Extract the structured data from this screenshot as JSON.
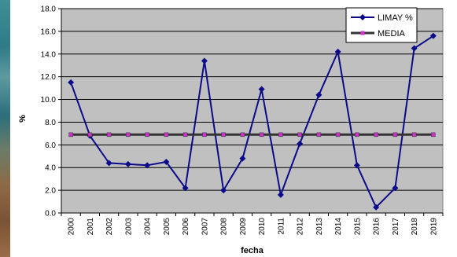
{
  "chart_data": {
    "type": "line",
    "title": "",
    "xlabel": "fecha",
    "ylabel": "%",
    "ylim": [
      0,
      18
    ],
    "ytick_step": 2,
    "ytick_labels": [
      "0.0",
      "2.0",
      "4.0",
      "6.0",
      "8.0",
      "10.0",
      "12.0",
      "14.0",
      "16.0",
      "18.0"
    ],
    "categories": [
      "2000",
      "2001",
      "2002",
      "2003",
      "2004",
      "2005",
      "2006",
      "2007",
      "2008",
      "2009",
      "2010",
      "2011",
      "2012",
      "2013",
      "2014",
      "2015",
      "2016",
      "2017",
      "2018",
      "2019"
    ],
    "series": [
      {
        "name": "LIMAY %",
        "color": "#0a0a8a",
        "marker": "diamond",
        "values": [
          11.5,
          6.8,
          4.4,
          4.3,
          4.2,
          4.5,
          2.2,
          13.4,
          2.0,
          4.8,
          10.9,
          1.6,
          6.1,
          10.4,
          14.2,
          4.2,
          0.5,
          2.2,
          14.5,
          15.6
        ]
      },
      {
        "name": "MEDIA",
        "color": "#333333",
        "marker_color": "#cc33cc",
        "marker": "square",
        "values": [
          6.9,
          6.9,
          6.9,
          6.9,
          6.9,
          6.9,
          6.9,
          6.9,
          6.9,
          6.9,
          6.9,
          6.9,
          6.9,
          6.9,
          6.9,
          6.9,
          6.9,
          6.9,
          6.9,
          6.9
        ]
      }
    ],
    "grid": true,
    "legend_position": "top-right",
    "plot_background": "#c0c0c0"
  }
}
